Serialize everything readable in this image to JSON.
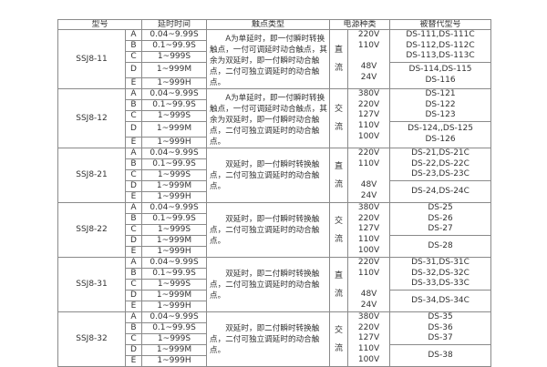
{
  "headers": {
    "model": "型号",
    "time": "延时时间",
    "contact": "触点类型",
    "power": "电源种类",
    "replacement": "被替代型号"
  },
  "groups": [
    {
      "model": "SSJ8-11",
      "rows": [
        [
          "A",
          "0.04~9.99S"
        ],
        [
          "B",
          "0.1~99.9S"
        ],
        [
          "C",
          "1~999S"
        ],
        [
          "D",
          "1~999M"
        ],
        [
          "E",
          "1~999H"
        ]
      ],
      "contact": "A为单延时，即一付瞬时转换触点，一付可调延时动合触点，其余为双延时，即一付瞬时动合触点，二付可独立调延时的动合触点。",
      "power_type": [
        "直",
        "流"
      ],
      "voltages": [
        "220V",
        "110V",
        "",
        "48V",
        "24V"
      ],
      "replacement_top": [
        "DS-111,DS-111C",
        "DS-112,DS-112C",
        "DS-113,DS-113C"
      ],
      "replacement_bottom": [
        "DS-114,DS-115",
        "DS-116"
      ]
    },
    {
      "model": "SSJ8-12",
      "rows": [
        [
          "A",
          "0.04~9.99S"
        ],
        [
          "B",
          "0.1~99.9S"
        ],
        [
          "C",
          "1~999S"
        ],
        [
          "D",
          "1~999M"
        ],
        [
          "E",
          "1~999H"
        ]
      ],
      "contact": "A为单延时，即一付瞬时转换触点，一付可调延时动合触点，其余为双延时，即一付瞬时动合触点，二付可独立调延时的动合触点。",
      "power_type": [
        "交",
        "流"
      ],
      "voltages": [
        "380V",
        "220V",
        "127V",
        "110V",
        "100V"
      ],
      "replacement_top": [
        "DS-121",
        "DS-122",
        "DS-123"
      ],
      "replacement_bottom": [
        "DS-124,,DS-125",
        "DS-126"
      ]
    },
    {
      "model": "SSJ8-21",
      "rows": [
        [
          "A",
          "0.04~9.99S"
        ],
        [
          "B",
          "0.1~99.9S"
        ],
        [
          "C",
          "1~999S"
        ],
        [
          "D",
          "1~999M"
        ],
        [
          "E",
          "1~999H"
        ]
      ],
      "contact": "双延时，即一付瞬时转换触点，二付可独立调延时的动合触点。",
      "power_type": [
        "直",
        "流"
      ],
      "voltages": [
        "220V",
        "110V",
        "",
        "48V",
        "24V"
      ],
      "replacement_top": [
        "DS-21,DS-21C",
        "DS-22,DS-22C",
        "DS-23,DS-23C"
      ],
      "replacement_bottom": [
        "DS-24,DS-24C"
      ]
    },
    {
      "model": "SSJ8-22",
      "rows": [
        [
          "A",
          "0.04~9.99S"
        ],
        [
          "B",
          "0.1~99.9S"
        ],
        [
          "C",
          "1~999S"
        ],
        [
          "D",
          "1~999M"
        ],
        [
          "E",
          "1~999H"
        ]
      ],
      "contact": "双延时，即一付瞬时转换触点，二付可独立调延时的动合触点。",
      "power_type": [
        "交",
        "流"
      ],
      "voltages": [
        "380V",
        "220V",
        "127V",
        "110V",
        "100V"
      ],
      "replacement_top": [
        "DS-25",
        "DS-26",
        "DS-27"
      ],
      "replacement_bottom": [
        "DS-28"
      ]
    },
    {
      "model": "SSJ8-31",
      "rows": [
        [
          "A",
          "0.04~9.99S"
        ],
        [
          "B",
          "0.1~99.9S"
        ],
        [
          "C",
          "1~999S"
        ],
        [
          "D",
          "1~999M"
        ],
        [
          "E",
          "1~999H"
        ]
      ],
      "contact": "双延时，即二付瞬时转换触点，二付可独立调延时的动合触点。",
      "power_type": [
        "直",
        "流"
      ],
      "voltages": [
        "220V",
        "110V",
        "",
        "48V",
        "24V"
      ],
      "replacement_top": [
        "DS-31,DS-31C",
        "DS-32,DS-32C",
        "DS-33,DS-33C"
      ],
      "replacement_bottom": [
        "DS-34,DS-34C"
      ]
    },
    {
      "model": "SSJ8-32",
      "rows": [
        [
          "A",
          "0.04~9.99S"
        ],
        [
          "B",
          "0.1~99.9S"
        ],
        [
          "C",
          "1~999S"
        ],
        [
          "D",
          "1~999M"
        ],
        [
          "E",
          "1~999H"
        ]
      ],
      "contact": "双延时，即二付瞬时转换触点，二付可独立调延时的动合触点。",
      "power_type": [
        "交",
        "流"
      ],
      "voltages": [
        "380V",
        "220V",
        "127V",
        "110V",
        "100V"
      ],
      "replacement_top": [
        "DS-35",
        "DS-36",
        "DS-37"
      ],
      "replacement_bottom": [
        "DS-38"
      ]
    }
  ]
}
